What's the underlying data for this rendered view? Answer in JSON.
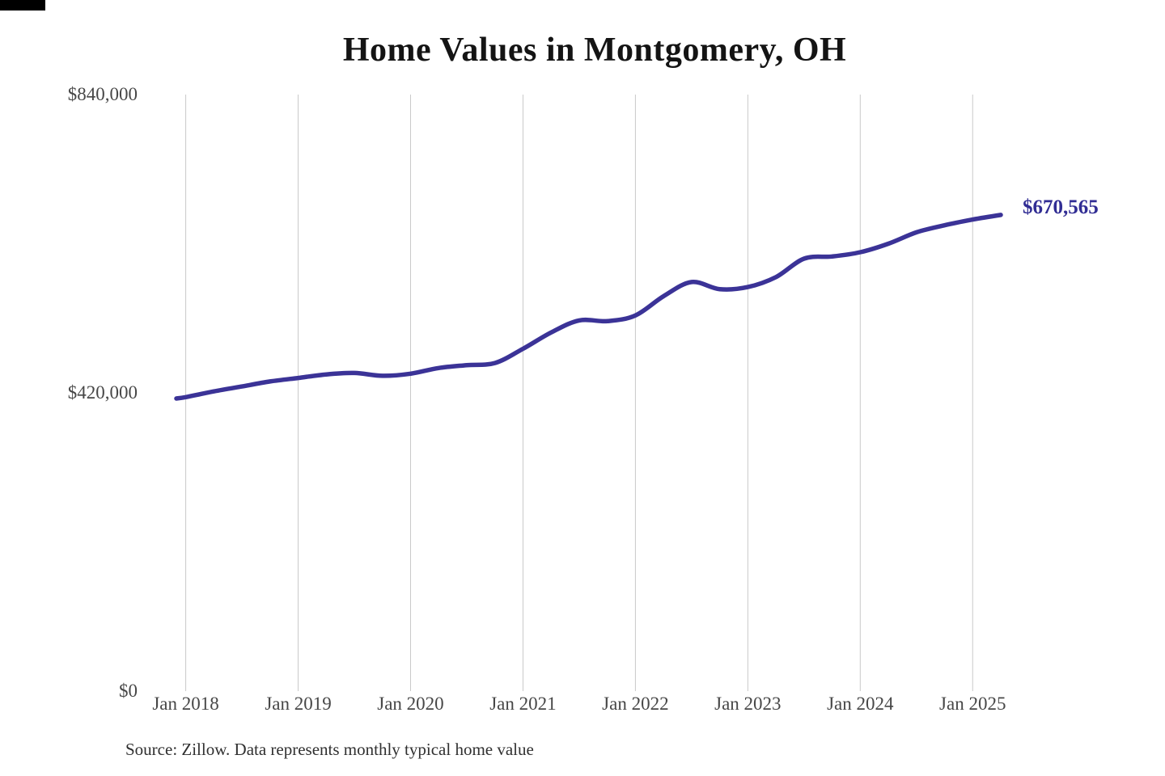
{
  "chart_data": {
    "type": "line",
    "title": "Home Values in Montgomery, OH",
    "series_name": "Monthly typical home value",
    "x": [
      "Dec 2017",
      "Jan 2018",
      "Apr 2018",
      "Jul 2018",
      "Oct 2018",
      "Jan 2019",
      "Apr 2019",
      "Jul 2019",
      "Oct 2019",
      "Jan 2020",
      "Apr 2020",
      "Jul 2020",
      "Oct 2020",
      "Jan 2021",
      "Apr 2021",
      "Jul 2021",
      "Oct 2021",
      "Jan 2022",
      "Apr 2022",
      "Jul 2022",
      "Oct 2022",
      "Jan 2023",
      "Apr 2023",
      "Jul 2023",
      "Oct 2023",
      "Jan 2024",
      "Apr 2024",
      "Jul 2024",
      "Oct 2024",
      "Jan 2025",
      "Apr 2025"
    ],
    "values": [
      412000,
      414000,
      422000,
      429000,
      436000,
      441000,
      446000,
      448000,
      444000,
      447000,
      455000,
      459000,
      462000,
      482000,
      505000,
      522000,
      521000,
      529000,
      556000,
      576000,
      566000,
      569000,
      583000,
      609000,
      612000,
      618000,
      630000,
      646000,
      656000,
      664000,
      670565
    ],
    "final_value": 670565,
    "final_value_label": "$670,565",
    "x_tick_labels": [
      "Jan 2018",
      "Jan 2019",
      "Jan 2020",
      "Jan 2021",
      "Jan 2022",
      "Jan 2023",
      "Jan 2024",
      "Jan 2025"
    ],
    "y_ticks": [
      {
        "value": 0,
        "label": "$0"
      },
      {
        "value": 420000,
        "label": "$420,000"
      },
      {
        "value": 840000,
        "label": "$840,000"
      }
    ],
    "ylim": [
      0,
      840000
    ],
    "grid": "vertical-only",
    "legend": "none",
    "source": "Source: Zillow. Data represents monthly typical home value",
    "colors": {
      "line": "#3b3397",
      "end_label": "#312d94",
      "gridline": "#c9c9c9",
      "axis_text": "#474747",
      "title": "#141414",
      "source_text": "#303030",
      "background": "#ffffff",
      "corner_mark": "#000000"
    }
  }
}
